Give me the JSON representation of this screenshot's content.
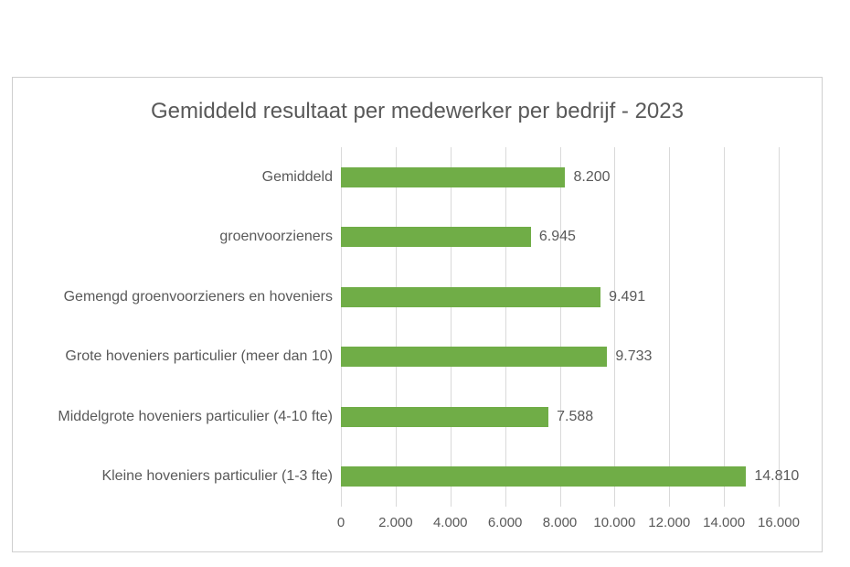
{
  "chart_data": {
    "type": "bar",
    "orientation": "horizontal",
    "title": "Gemiddeld resultaat per medewerker per bedrijf - 2023",
    "categories": [
      "Gemiddeld",
      "groenvoorzieners",
      "Gemengd groenvoorzieners en hoveniers",
      "Grote hoveniers particulier (meer dan 10)",
      "Middelgrote hoveniers particulier (4-10 fte)",
      "Kleine hoveniers particulier (1-3 fte)"
    ],
    "values": [
      8200,
      6945,
      9491,
      9733,
      7588,
      14810
    ],
    "value_labels": [
      "8.200",
      "6.945",
      "9.491",
      "9.733",
      "7.588",
      "14.810"
    ],
    "xlim": [
      0,
      16000
    ],
    "x_ticks": [
      0,
      2000,
      4000,
      6000,
      8000,
      10000,
      12000,
      14000,
      16000
    ],
    "x_tick_labels": [
      "0",
      "2.000",
      "4.000",
      "6.000",
      "8.000",
      "10.000",
      "12.000",
      "14.000",
      "16.000"
    ],
    "xlabel": "",
    "ylabel": "",
    "grid": true,
    "legend": false,
    "colors": {
      "bar": "#70AD47",
      "gridline": "#D9D9D9",
      "text": "#595959",
      "frame_border": "#CFCFCF",
      "background": "#FFFFFF"
    }
  }
}
